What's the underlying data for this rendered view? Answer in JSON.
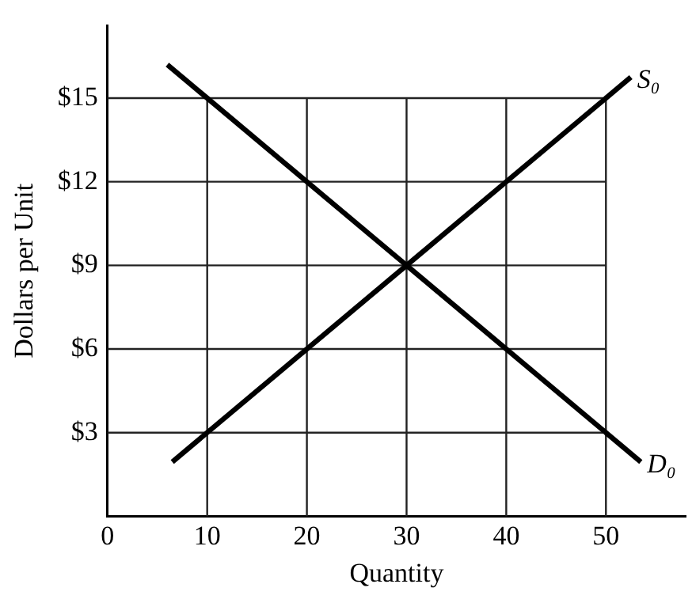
{
  "chart_data": {
    "type": "line",
    "xlabel": "Quantity",
    "ylabel": "Dollars per Unit",
    "xlim": [
      0,
      58
    ],
    "ylim": [
      0,
      17.6
    ],
    "xticks": [
      0,
      10,
      20,
      30,
      40,
      50
    ],
    "yticks": [
      {
        "value": 3,
        "label": "$3"
      },
      {
        "value": 6,
        "label": "$6"
      },
      {
        "value": 9,
        "label": "$9"
      },
      {
        "value": 12,
        "label": "$12"
      },
      {
        "value": 15,
        "label": "$15"
      }
    ],
    "grid": true,
    "legend": false,
    "marker": "none",
    "line_style": "solid",
    "series": [
      {
        "name": "S₀",
        "color": "#000000",
        "x": [
          6.5,
          52.5
        ],
        "values": [
          1.95,
          15.75
        ]
      },
      {
        "name": "D₀",
        "color": "#000000",
        "x": [
          6,
          53.5
        ],
        "values": [
          16.2,
          1.95
        ]
      }
    ]
  }
}
